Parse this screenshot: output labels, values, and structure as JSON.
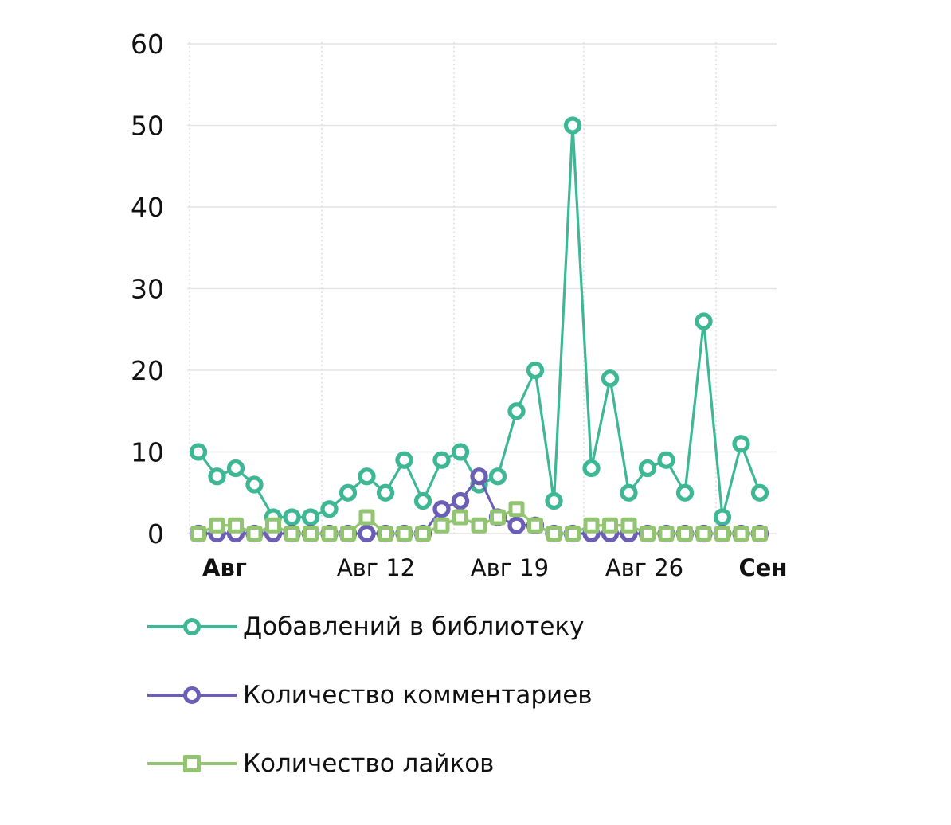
{
  "chart_data": {
    "type": "line",
    "title": "",
    "xlabel": "",
    "ylabel": "",
    "x_unit": "day of August",
    "x": [
      1,
      2,
      3,
      4,
      5,
      6,
      7,
      8,
      9,
      10,
      11,
      12,
      13,
      14,
      15,
      16,
      17,
      18,
      19,
      20,
      21,
      22,
      23,
      24,
      25,
      26,
      27,
      28,
      29,
      30,
      31
    ],
    "series": [
      {
        "name": "Добавлений в библиотеку",
        "color": "#3eb795",
        "marker": "circle",
        "values": [
          10,
          7,
          8,
          6,
          2,
          2,
          2,
          3,
          5,
          7,
          5,
          9,
          4,
          9,
          10,
          6,
          7,
          15,
          20,
          4,
          50,
          8,
          19,
          5,
          8,
          9,
          5,
          26,
          2,
          11,
          5
        ]
      },
      {
        "name": "Количество комментариев",
        "color": "#6a5fb5",
        "marker": "circle",
        "values": [
          0,
          0,
          0,
          0,
          0,
          0,
          0,
          0,
          0,
          0,
          0,
          0,
          0,
          3,
          4,
          7,
          2,
          1,
          1,
          0,
          0,
          0,
          0,
          0,
          0,
          0,
          0,
          0,
          0,
          0,
          0
        ]
      },
      {
        "name": "Количество лайков",
        "color": "#92c471",
        "marker": "square",
        "values": [
          0,
          1,
          1,
          0,
          1,
          0,
          0,
          0,
          0,
          2,
          0,
          0,
          0,
          1,
          2,
          1,
          2,
          3,
          1,
          0,
          0,
          1,
          1,
          1,
          0,
          0,
          0,
          0,
          0,
          0,
          0
        ]
      }
    ],
    "yticks": [
      0,
      10,
      20,
      30,
      40,
      50,
      60
    ],
    "ylim": [
      0,
      60
    ],
    "xticks": [
      {
        "label": "Авг",
        "bold": true
      },
      {
        "label": "Авг 12",
        "bold": false
      },
      {
        "label": "Авг 19",
        "bold": false
      },
      {
        "label": "Авг 26",
        "bold": false
      },
      {
        "label": "Сен",
        "bold": true
      }
    ],
    "grid": {
      "horizontal": "solid",
      "vertical": "dotted-weekly"
    },
    "legend_position": "bottom-left"
  }
}
